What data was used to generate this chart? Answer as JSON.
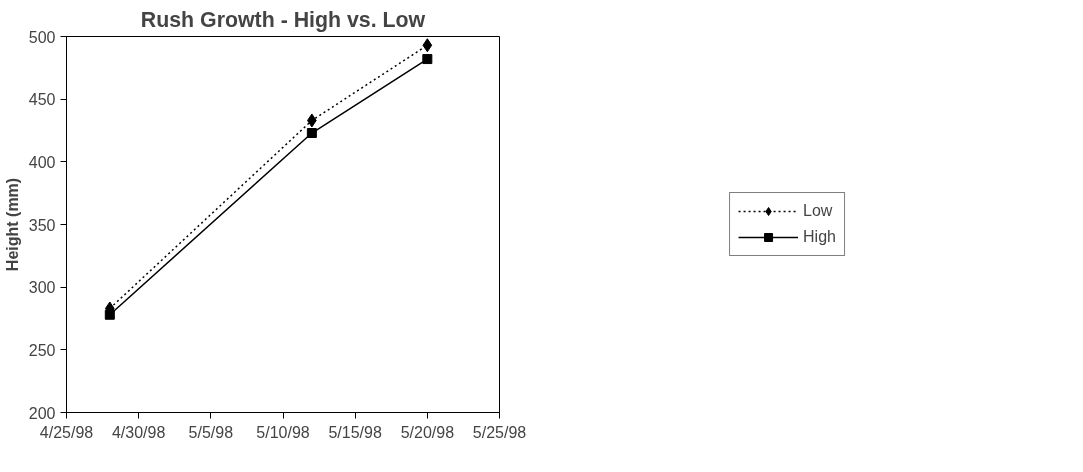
{
  "chart_data": {
    "type": "line",
    "title": "Rush Growth - High vs. Low",
    "ylabel": "Height (mm)",
    "x": [
      "1998-04-28",
      "1998-05-12",
      "1998-05-20"
    ],
    "series": [
      {
        "name": "Low",
        "color": "#000000",
        "values": [
          283,
          433,
          493
        ],
        "marker": "diamond",
        "line_style": "dotted"
      },
      {
        "name": "High",
        "color": "#000000",
        "values": [
          278,
          423,
          482
        ],
        "marker": "square",
        "line_style": "solid"
      }
    ],
    "xlim": [
      "1998-04-25",
      "1998-05-25"
    ],
    "xticks": [
      {
        "value": "1998-04-25",
        "label": "4/25/98"
      },
      {
        "value": "1998-04-30",
        "label": "4/30/98"
      },
      {
        "value": "1998-05-05",
        "label": "5/5/98"
      },
      {
        "value": "1998-05-10",
        "label": "5/10/98"
      },
      {
        "value": "1998-05-15",
        "label": "5/15/98"
      },
      {
        "value": "1998-05-20",
        "label": "5/20/98"
      },
      {
        "value": "1998-05-25",
        "label": "5/25/98"
      }
    ],
    "ylim": [
      200,
      500
    ],
    "yticks": [
      200,
      250,
      300,
      350,
      400,
      450,
      500
    ],
    "grid": false,
    "legend": "right"
  }
}
